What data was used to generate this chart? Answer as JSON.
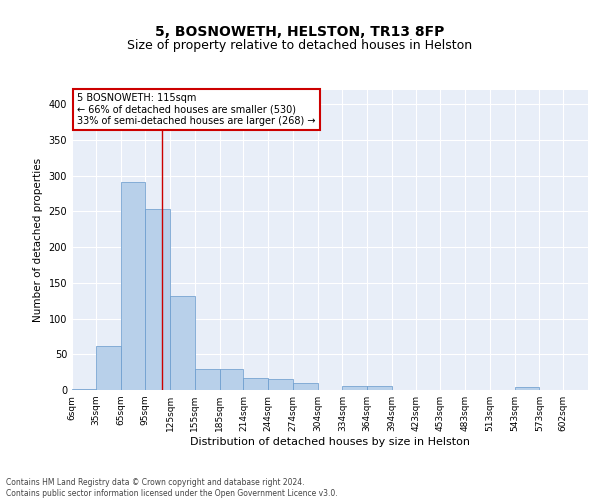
{
  "title": "5, BOSNOWETH, HELSTON, TR13 8FP",
  "subtitle": "Size of property relative to detached houses in Helston",
  "xlabel": "Distribution of detached houses by size in Helston",
  "ylabel": "Number of detached properties",
  "bar_labels": [
    "6sqm",
    "35sqm",
    "65sqm",
    "95sqm",
    "125sqm",
    "155sqm",
    "185sqm",
    "214sqm",
    "244sqm",
    "274sqm",
    "304sqm",
    "334sqm",
    "364sqm",
    "394sqm",
    "423sqm",
    "453sqm",
    "483sqm",
    "513sqm",
    "543sqm",
    "573sqm",
    "602sqm"
  ],
  "bar_values": [
    2,
    62,
    291,
    254,
    131,
    30,
    30,
    17,
    16,
    10,
    0,
    5,
    5,
    0,
    0,
    0,
    0,
    0,
    4,
    0,
    0
  ],
  "bar_color": "#b8d0ea",
  "bar_edge_color": "#6699cc",
  "ylim": [
    0,
    420
  ],
  "yticks": [
    0,
    50,
    100,
    150,
    200,
    250,
    300,
    350,
    400
  ],
  "property_line_x": 115,
  "bin_starts": [
    6,
    35,
    65,
    95,
    125,
    155,
    185,
    214,
    244,
    274,
    304,
    334,
    364,
    394,
    423,
    453,
    483,
    513,
    543,
    573,
    602
  ],
  "annotation_title": "5 BOSNOWETH: 115sqm",
  "annotation_line1": "← 66% of detached houses are smaller (530)",
  "annotation_line2": "33% of semi-detached houses are larger (268) →",
  "annotation_color": "#cc0000",
  "background_color": "#e8eef8",
  "grid_color": "#ffffff",
  "footer_line1": "Contains HM Land Registry data © Crown copyright and database right 2024.",
  "footer_line2": "Contains public sector information licensed under the Open Government Licence v3.0."
}
